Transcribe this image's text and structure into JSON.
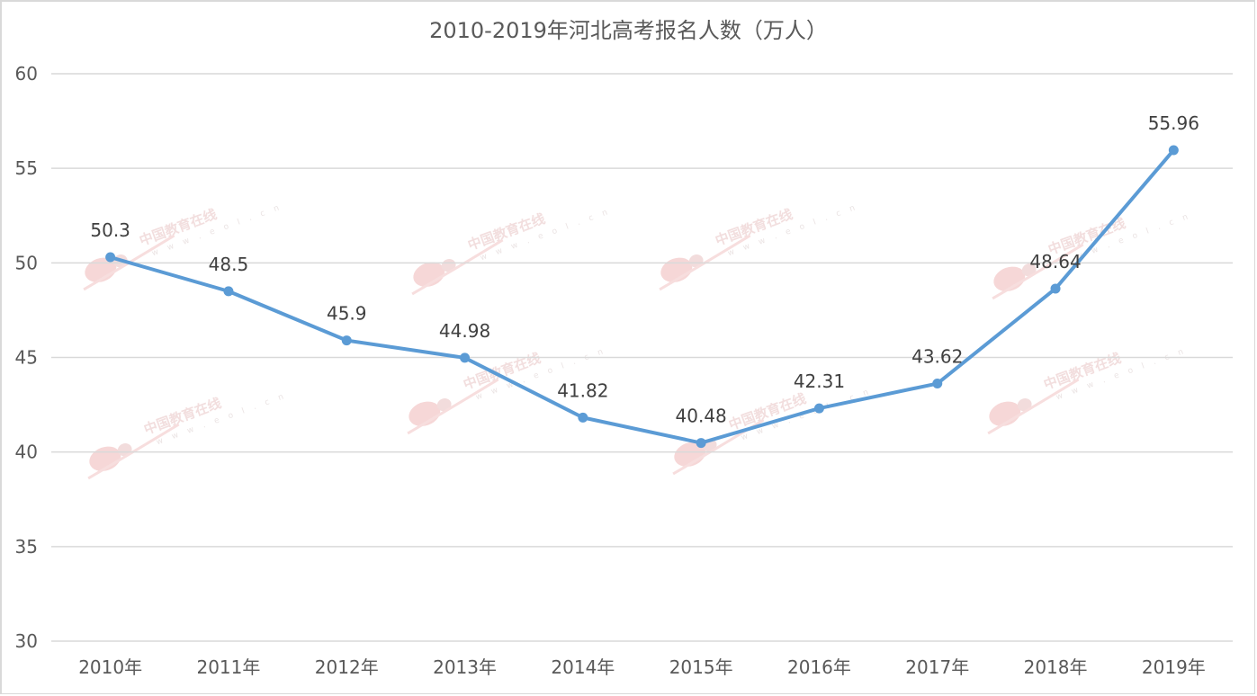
{
  "chart_data": {
    "type": "line",
    "title": "2010-2019年河北高考报名人数（万人）",
    "xlabel": "",
    "ylabel": "",
    "categories": [
      "2010年",
      "2011年",
      "2012年",
      "2013年",
      "2014年",
      "2015年",
      "2016年",
      "2017年",
      "2018年",
      "2019年"
    ],
    "series": [
      {
        "name": "河北高考报名人数（万人）",
        "values": [
          50.3,
          48.5,
          45.9,
          44.98,
          41.82,
          40.48,
          42.31,
          43.62,
          48.64,
          55.96
        ],
        "labels": [
          "50.3",
          "48.5",
          "45.9",
          "44.98",
          "41.82",
          "40.48",
          "42.31",
          "43.62",
          "48.64",
          "55.96"
        ],
        "color": "#5b9bd5"
      }
    ],
    "ylim": [
      30,
      60
    ],
    "yticks": [
      "60",
      "55",
      "50",
      "45",
      "40",
      "35",
      "30"
    ],
    "grid": true,
    "legend": "none",
    "gridline_color": "#d9d9d9",
    "text_color": "#595959"
  },
  "watermark": {
    "logo": "eol",
    "text": "中国教育在线",
    "url": "w w w . e o l . c n"
  }
}
